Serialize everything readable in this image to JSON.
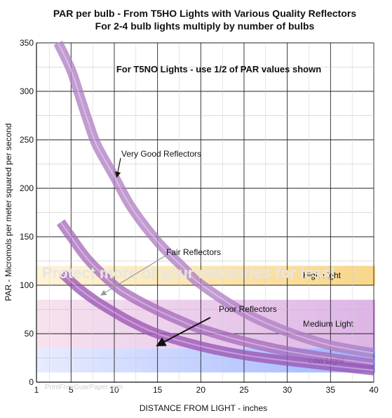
{
  "chart_data": {
    "type": "line",
    "title": "PAR per bulb - From T5HO Lights with Various Quality Reflectors",
    "subtitle": "For 2-4 bulb lights multiply by number of bulbs",
    "note": "For T5NO Lights - use 1/2 of PAR values shown",
    "xlabel": "DISTANCE FROM LIGHT - inches",
    "ylabel": "PAR - Micromols per meter squared per second",
    "xlim": [
      1,
      40
    ],
    "ylim": [
      0,
      350
    ],
    "xticks": [
      1,
      5,
      10,
      15,
      20,
      25,
      30,
      35,
      40
    ],
    "yticks": [
      0,
      50,
      100,
      150,
      200,
      250,
      300,
      350
    ],
    "grid": true,
    "series": [
      {
        "name": "Very Good Reflectors",
        "color": "#b07fc4",
        "x": [
          3.5,
          5,
          6,
          7,
          8,
          10,
          12,
          15,
          18,
          20,
          25,
          30,
          35,
          40
        ],
        "y": [
          350,
          322,
          295,
          268,
          244,
          212,
          180,
          145,
          118,
          101,
          72,
          52,
          38,
          30
        ]
      },
      {
        "name": "Fair Reflectors",
        "color": "#a86bbd",
        "x": [
          3.8,
          5,
          7,
          10,
          12,
          15,
          18,
          20,
          25,
          30,
          35,
          40
        ],
        "y": [
          165,
          150,
          126,
          100,
          88,
          74,
          62,
          55,
          42,
          32,
          25,
          19
        ]
      },
      {
        "name": "Poor Reflectors",
        "color": "#9b55b5",
        "x": [
          4,
          6,
          8,
          10,
          12,
          15,
          20,
          25,
          30,
          35,
          40
        ],
        "y": [
          112,
          96,
          83,
          72,
          62,
          50,
          37,
          28,
          22,
          17,
          12
        ]
      }
    ],
    "annotations": [
      {
        "text": "Very Good Reflectors",
        "x": 10.3,
        "y": 212
      },
      {
        "text": "Fair Reflectors",
        "x": 8.5,
        "y": 90
      },
      {
        "text": "Poor Reflectors",
        "x": 15,
        "y": 38
      }
    ],
    "zones": [
      {
        "label": "High Light",
        "y_range": [
          100,
          120
        ],
        "color": "#fbe3a6"
      },
      {
        "label": "Medium Light",
        "y_range": [
          35,
          85
        ],
        "color": "#e9c7ea"
      },
      {
        "label": "Low Light",
        "y_range": [
          10,
          35
        ],
        "color": "#b7c7ff"
      }
    ],
    "watermarks": [
      "Protect more of your memories for less!",
      "PrintFreeGuarPaper.com"
    ]
  }
}
